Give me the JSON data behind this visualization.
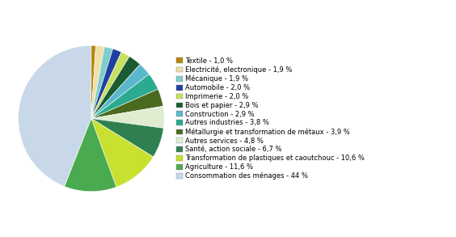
{
  "labels": [
    "Textile - 1,0 %",
    "Electricité, electronique - 1,9 %",
    "Mécanique - 1,9 %",
    "Automobile - 2,0 %",
    "Imprimerie - 2,0 %",
    "Bois et papier - 2,9 %",
    "Construction - 2,9 %",
    "Autres industries - 3,8 %",
    "Métallurgie et transformation de métaux - 3,9 %",
    "Autres services - 4,8 %",
    "Santé, action sociale - 6,7 %",
    "Transformation de plastiques et caoutchouc - 10,6 %",
    "Agriculture - 11,6 %",
    "Consommation des ménages - 44 %"
  ],
  "values": [
    1.0,
    1.9,
    1.9,
    2.0,
    2.0,
    2.9,
    2.9,
    3.8,
    3.9,
    4.8,
    6.7,
    10.6,
    11.6,
    44.0
  ],
  "colors": [
    "#b8860b",
    "#f0dfa8",
    "#7ecece",
    "#2040a0",
    "#c8e060",
    "#1a5c32",
    "#5ab8cc",
    "#2aaa8f",
    "#4a6a20",
    "#deecd0",
    "#2e8050",
    "#c8e030",
    "#4aaa50",
    "#c8d8e8"
  ],
  "figsize": [
    5.64,
    2.93
  ],
  "dpi": 100,
  "legend_fontsize": 6.0,
  "background_color": "#ffffff"
}
